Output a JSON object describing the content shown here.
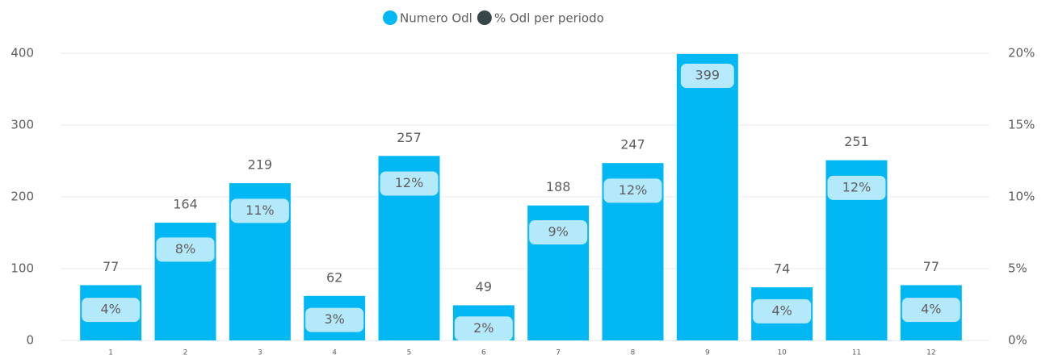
{
  "chart_data": {
    "type": "bar-line",
    "categories": [
      "1",
      "2",
      "3",
      "4",
      "5",
      "6",
      "7",
      "8",
      "9",
      "10",
      "11",
      "12"
    ],
    "series": [
      {
        "name": "Numero Odl",
        "color": "#01b8f5",
        "type": "bar",
        "values": [
          77,
          164,
          219,
          62,
          257,
          49,
          188,
          247,
          399,
          74,
          251,
          77
        ]
      },
      {
        "name": "% Odl per periodo",
        "color": "#374649",
        "type": "line",
        "axis": "y2",
        "values": [
          3.7,
          7.9,
          10.6,
          3.0,
          12.5,
          2.4,
          9.1,
          12.0,
          19.3,
          3.6,
          12.2,
          3.7
        ],
        "value_labels": [
          "4%",
          "8%",
          "11%",
          "3%",
          "12%",
          "2%",
          "9%",
          "12%",
          null,
          "4%",
          "12%",
          "4%"
        ]
      }
    ],
    "ylim": [
      0,
      400
    ],
    "yticks": [
      0,
      100,
      200,
      300,
      400
    ],
    "y2lim": [
      0,
      20
    ],
    "y2ticks": [
      {
        "value": 0,
        "label": "0%"
      },
      {
        "value": 5,
        "label": "5%"
      },
      {
        "value": 10,
        "label": "10%"
      },
      {
        "value": 15,
        "label": "15%"
      },
      {
        "value": 20,
        "label": "20%"
      }
    ],
    "grid": true,
    "legend": "top"
  }
}
